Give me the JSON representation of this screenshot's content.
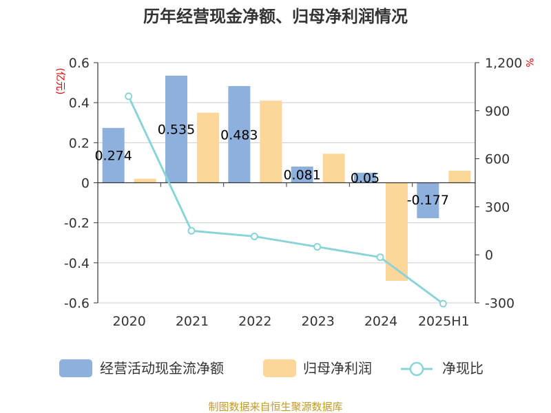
{
  "chart_data": {
    "type": "bar",
    "title": "历年经营现金净额、归母净利润情况",
    "categories": [
      "2020",
      "2021",
      "2022",
      "2023",
      "2024",
      "2025H1"
    ],
    "left_axis": {
      "unit_label": "(亿元)",
      "ylim": [
        -0.6,
        0.6
      ],
      "ticks": [
        0.6,
        0.4,
        0.2,
        0,
        -0.2,
        -0.4,
        -0.6
      ],
      "tick_labels": [
        "0.6",
        "0.4",
        "0.2",
        "0",
        "-0.2",
        "-0.4",
        "-0.6"
      ]
    },
    "right_axis": {
      "unit_label": "%",
      "ylim": [
        -300,
        1200
      ],
      "ticks": [
        1200,
        900,
        600,
        300,
        0,
        -300
      ],
      "tick_labels": [
        "1,200",
        "900",
        "600",
        "300",
        "0",
        "-300"
      ]
    },
    "series": [
      {
        "name": "经营活动现金流净额",
        "type": "bar",
        "axis": "left",
        "color": "#8eb0dc",
        "values": [
          0.274,
          0.535,
          0.483,
          0.081,
          0.05,
          -0.177
        ],
        "labels": [
          "0.274",
          "0.535",
          "0.483",
          "0.081",
          "0.05",
          "-0.177"
        ]
      },
      {
        "name": "归母净利润",
        "type": "bar",
        "axis": "left",
        "color": "#fdd69a",
        "values": [
          0.02,
          0.35,
          0.41,
          0.145,
          -0.49,
          0.06
        ]
      },
      {
        "name": "净现比",
        "type": "line",
        "axis": "right",
        "color": "#8ad4d8",
        "values": [
          990,
          150,
          115,
          50,
          -15,
          -305
        ]
      }
    ],
    "grid": true,
    "legend_position": "bottom"
  },
  "source": "制图数据来自恒生聚源数据库"
}
